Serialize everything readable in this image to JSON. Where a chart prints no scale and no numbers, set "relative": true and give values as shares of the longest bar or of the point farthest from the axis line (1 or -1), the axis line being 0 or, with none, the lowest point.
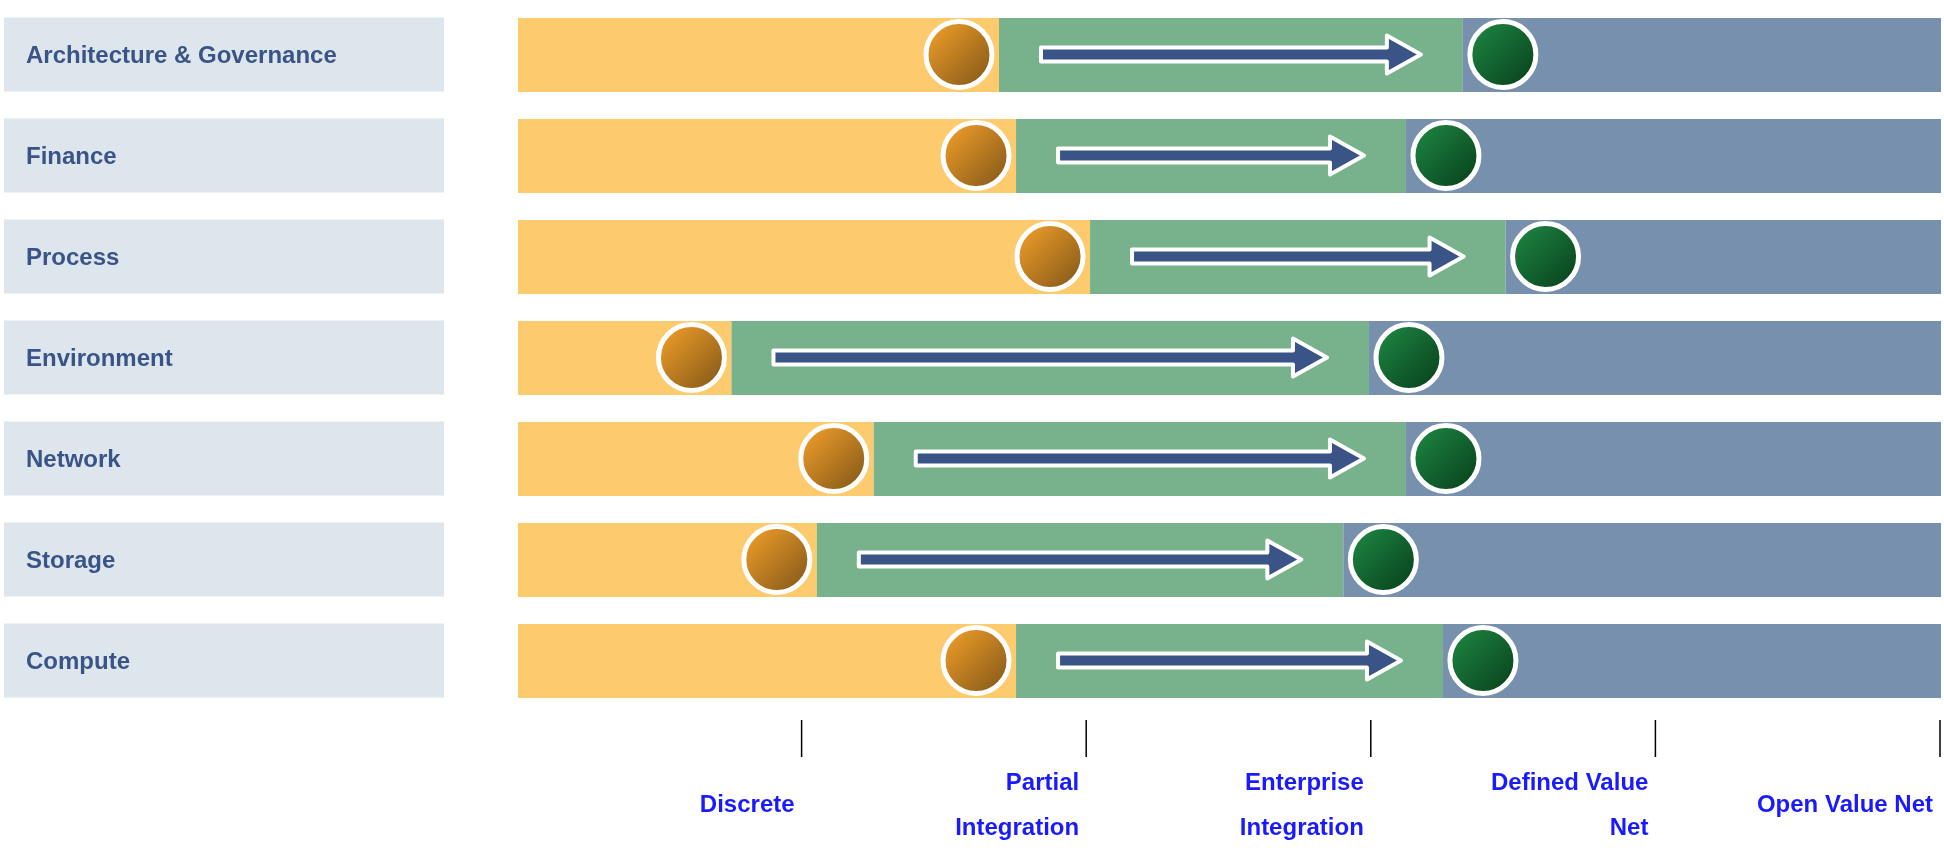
{
  "chart_data": {
    "type": "bar",
    "orientation": "horizontal",
    "stacked": true,
    "relative": true,
    "categories": [
      "Architecture & Governance",
      "Finance",
      "Process",
      "Environment",
      "Network",
      "Storage",
      "Compute"
    ],
    "series": [
      {
        "color": "#fdcb6e",
        "values": [
          0.338,
          0.35,
          0.402,
          0.15,
          0.25,
          0.21,
          0.35
        ]
      },
      {
        "color": "#78b28c",
        "values": [
          0.326,
          0.274,
          0.292,
          0.448,
          0.374,
          0.37,
          0.3
        ]
      },
      {
        "color": "#7690ad",
        "values": [
          0.336,
          0.376,
          0.306,
          0.402,
          0.376,
          0.42,
          0.35
        ]
      }
    ],
    "annotations": [
      "Discrete",
      "Partial Integration",
      "Enterprise Integration",
      "Defined Value Net",
      "Open Value Net"
    ],
    "grid": false,
    "legend": false
  }
}
